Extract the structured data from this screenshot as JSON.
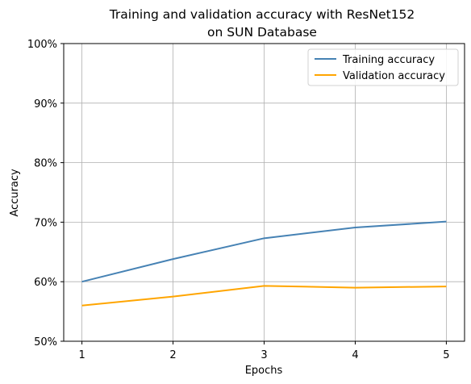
{
  "chart_data": {
    "type": "line",
    "title": [
      "Training and validation accuracy with ResNet152",
      "on SUN Database"
    ],
    "xlabel": "Epochs",
    "ylabel": "Accuracy",
    "x": [
      1,
      2,
      3,
      4,
      5
    ],
    "xticks": [
      "1",
      "2",
      "3",
      "4",
      "5"
    ],
    "xlim": [
      0.8,
      5.2
    ],
    "ylim": [
      50,
      100
    ],
    "yticks": [
      50,
      60,
      70,
      80,
      90,
      100
    ],
    "ytick_labels": [
      "50%",
      "60%",
      "70%",
      "80%",
      "90%",
      "100%"
    ],
    "grid": true,
    "legend_position": "top-right",
    "series": [
      {
        "name": "Training accuracy",
        "color": "#4682b4",
        "values": [
          60.0,
          63.8,
          67.3,
          69.1,
          70.1
        ]
      },
      {
        "name": "Validation accuracy",
        "color": "#ffa500",
        "values": [
          56.0,
          57.5,
          59.3,
          59.0,
          59.2
        ]
      }
    ]
  }
}
